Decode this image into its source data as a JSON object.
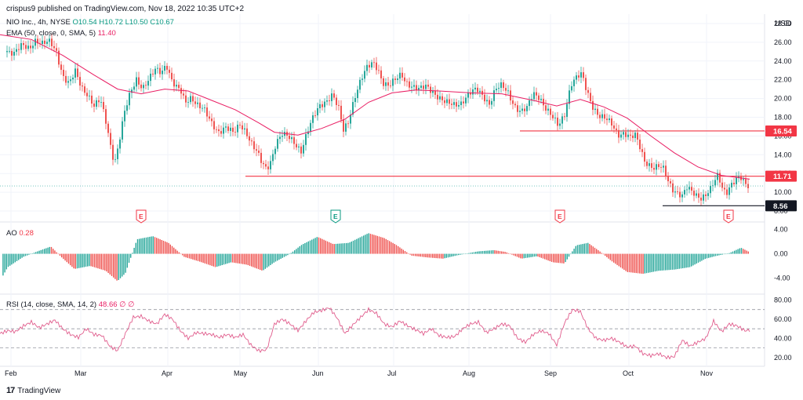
{
  "header": {
    "published_note": "crispus9 published on TradingView.com, Nov 18, 2022 10:35 UTC+2",
    "symbol_line": "NIO Inc., 4h, NYSE",
    "ohlc": {
      "O": "O10.54",
      "H": "H10.72",
      "L": "L10.50",
      "C": "C10.67"
    },
    "ema_label": "EMA (50, close, 0, SMA, 5)",
    "ema_value": "11.40",
    "ao_label": "AO",
    "ao_value": "0.28",
    "rsi_label": "RSI (14, close, SMA, 14, 2)",
    "rsi_values": "48.66 ∅ ∅",
    "currency": "USD"
  },
  "brand": {
    "logo": "17",
    "name": "TradingView"
  },
  "colors": {
    "up": "#26a69a",
    "down": "#ef5350",
    "ema": "#e91e63",
    "rsi": "#e05c8c",
    "level_red": "#f23645",
    "level_black": "#131722",
    "grid": "#f0f3fa"
  },
  "chart_data": [
    {
      "type": "candlestick",
      "name": "NIO Inc., 4h, NYSE",
      "x_ticks": [
        "Feb",
        "Mar",
        "Apr",
        "May",
        "Jun",
        "Jul",
        "Aug",
        "Sep",
        "Oct",
        "Nov"
      ],
      "y_ticks": [
        "28.00",
        "26.00",
        "24.00",
        "22.00",
        "20.00",
        "18.00",
        "16.00",
        "14.00",
        "12.00",
        "10.00",
        "8.00"
      ],
      "ylim": [
        7.5,
        29
      ],
      "price_path": [
        [
          0,
          24.2
        ],
        [
          8,
          25.2
        ],
        [
          18,
          24.8
        ],
        [
          28,
          25.6
        ],
        [
          38,
          25.4
        ],
        [
          44,
          26.3
        ],
        [
          54,
          25.8
        ],
        [
          64,
          26.0
        ],
        [
          72,
          25.0
        ],
        [
          80,
          22.5
        ],
        [
          88,
          21.5
        ],
        [
          96,
          22.8
        ],
        [
          104,
          21.2
        ],
        [
          112,
          20.5
        ],
        [
          120,
          19.2
        ],
        [
          128,
          19.8
        ],
        [
          136,
          17.2
        ],
        [
          141,
          15.0
        ],
        [
          146,
          13.2
        ],
        [
          151,
          15.0
        ],
        [
          158,
          18.2
        ],
        [
          166,
          20.5
        ],
        [
          174,
          22.1
        ],
        [
          182,
          21.2
        ],
        [
          190,
          22.0
        ],
        [
          198,
          23.0
        ],
        [
          206,
          22.8
        ],
        [
          212,
          23.8
        ],
        [
          218,
          22.2
        ],
        [
          224,
          21.2
        ],
        [
          230,
          20.8
        ],
        [
          236,
          19.5
        ],
        [
          244,
          20.2
        ],
        [
          252,
          19.4
        ],
        [
          260,
          18.8
        ],
        [
          268,
          17.5
        ],
        [
          278,
          16.5
        ],
        [
          288,
          17.0
        ],
        [
          298,
          16.2
        ],
        [
          306,
          17.2
        ],
        [
          314,
          16.5
        ],
        [
          320,
          15.4
        ],
        [
          328,
          14.2
        ],
        [
          334,
          13.0
        ],
        [
          340,
          12.4
        ],
        [
          346,
          13.5
        ],
        [
          352,
          15.4
        ],
        [
          360,
          16.2
        ],
        [
          368,
          15.8
        ],
        [
          376,
          15.2
        ],
        [
          384,
          14.5
        ],
        [
          392,
          16.5
        ],
        [
          400,
          18.0
        ],
        [
          408,
          19.2
        ],
        [
          416,
          19.8
        ],
        [
          424,
          20.5
        ],
        [
          432,
          18.8
        ],
        [
          438,
          16.5
        ],
        [
          444,
          17.5
        ],
        [
          452,
          20.2
        ],
        [
          460,
          22.0
        ],
        [
          468,
          23.2
        ],
        [
          476,
          23.8
        ],
        [
          482,
          23.2
        ],
        [
          488,
          21.8
        ],
        [
          496,
          21.3
        ],
        [
          504,
          21.9
        ],
        [
          512,
          22.6
        ],
        [
          518,
          21.8
        ],
        [
          526,
          21.3
        ],
        [
          534,
          20.9
        ],
        [
          544,
          21.3
        ],
        [
          552,
          20.8
        ],
        [
          560,
          20.1
        ],
        [
          568,
          19.5
        ],
        [
          578,
          19.3
        ],
        [
          588,
          19.6
        ],
        [
          598,
          20.5
        ],
        [
          608,
          20.9
        ],
        [
          616,
          20.3
        ],
        [
          624,
          19.5
        ],
        [
          632,
          21.0
        ],
        [
          640,
          21.3
        ],
        [
          648,
          20.6
        ],
        [
          656,
          19.3
        ],
        [
          664,
          18.6
        ],
        [
          672,
          18.9
        ],
        [
          680,
          20.5
        ],
        [
          688,
          20.2
        ],
        [
          696,
          19.0
        ],
        [
          704,
          18.0
        ],
        [
          712,
          17.0
        ],
        [
          720,
          18.4
        ],
        [
          728,
          21.6
        ],
        [
          736,
          22.3
        ],
        [
          742,
          22.5
        ],
        [
          748,
          20.8
        ],
        [
          756,
          19.2
        ],
        [
          764,
          18.2
        ],
        [
          772,
          17.8
        ],
        [
          780,
          17.2
        ],
        [
          788,
          16.2
        ],
        [
          796,
          16.4
        ],
        [
          804,
          15.8
        ],
        [
          810,
          16.0
        ],
        [
          816,
          14.8
        ],
        [
          822,
          13.4
        ],
        [
          828,
          13.0
        ],
        [
          834,
          12.6
        ],
        [
          840,
          12.7
        ],
        [
          846,
          12.4
        ],
        [
          852,
          11.2
        ],
        [
          858,
          10.4
        ],
        [
          864,
          10.0
        ],
        [
          870,
          9.6
        ],
        [
          876,
          10.4
        ],
        [
          882,
          10.0
        ],
        [
          888,
          9.7
        ],
        [
          894,
          9.5
        ],
        [
          900,
          9.8
        ],
        [
          906,
          10.3
        ],
        [
          912,
          11.2
        ],
        [
          916,
          11.8
        ],
        [
          920,
          10.6
        ],
        [
          926,
          10.0
        ],
        [
          932,
          10.9
        ],
        [
          938,
          11.3
        ],
        [
          944,
          11.5
        ],
        [
          950,
          10.8
        ],
        [
          956,
          10.6
        ]
      ],
      "ema_path": [
        [
          0,
          26.8
        ],
        [
          40,
          26.3
        ],
        [
          80,
          24.6
        ],
        [
          120,
          22.5
        ],
        [
          150,
          21.0
        ],
        [
          180,
          20.5
        ],
        [
          210,
          21.0
        ],
        [
          240,
          20.8
        ],
        [
          270,
          19.8
        ],
        [
          300,
          18.8
        ],
        [
          330,
          17.4
        ],
        [
          350,
          16.4
        ],
        [
          380,
          16.1
        ],
        [
          410,
          16.8
        ],
        [
          440,
          17.8
        ],
        [
          470,
          19.6
        ],
        [
          500,
          20.6
        ],
        [
          530,
          20.9
        ],
        [
          560,
          20.8
        ],
        [
          600,
          20.6
        ],
        [
          640,
          20.5
        ],
        [
          680,
          19.8
        ],
        [
          710,
          19.2
        ],
        [
          740,
          19.9
        ],
        [
          770,
          19.1
        ],
        [
          800,
          17.9
        ],
        [
          830,
          16.0
        ],
        [
          860,
          14.2
        ],
        [
          890,
          12.7
        ],
        [
          920,
          11.8
        ],
        [
          956,
          11.4
        ]
      ],
      "levels": [
        {
          "value": 16.54,
          "label": "16.54",
          "color": "red",
          "x_start": 663
        },
        {
          "value": 11.71,
          "label": "11.71",
          "color": "red",
          "x_start": 313
        },
        {
          "value": 8.56,
          "label": "8.56",
          "color": "black",
          "x_start": 845
        }
      ],
      "current_price": 10.67,
      "earnings_markers": [
        {
          "label": "E",
          "x": 180,
          "style": "red"
        },
        {
          "label": "E",
          "x": 428,
          "style": "green"
        },
        {
          "label": "E",
          "x": 714,
          "style": "red"
        },
        {
          "label": "E",
          "x": 929,
          "style": "red"
        }
      ]
    },
    {
      "type": "histogram",
      "name": "AO",
      "y_ticks": [
        "4.00",
        "0.00",
        "-4.00"
      ],
      "ylim": [
        -6,
        4.6
      ],
      "wave": [
        [
          0,
          -4.5
        ],
        [
          10,
          -2.2
        ],
        [
          30,
          -0.5
        ],
        [
          50,
          0.5
        ],
        [
          65,
          1.2
        ],
        [
          78,
          -0.5
        ],
        [
          95,
          -2.5
        ],
        [
          115,
          -2.0
        ],
        [
          135,
          -2.8
        ],
        [
          150,
          -4.5
        ],
        [
          160,
          -3.2
        ],
        [
          175,
          2.4
        ],
        [
          195,
          2.9
        ],
        [
          215,
          1.8
        ],
        [
          235,
          -0.5
        ],
        [
          255,
          -1.3
        ],
        [
          275,
          -2.2
        ],
        [
          295,
          -1.4
        ],
        [
          315,
          -1.8
        ],
        [
          335,
          -2.8
        ],
        [
          350,
          -1.4
        ],
        [
          370,
          0.0
        ],
        [
          385,
          1.5
        ],
        [
          405,
          2.8
        ],
        [
          425,
          1.6
        ],
        [
          445,
          1.8
        ],
        [
          470,
          3.4
        ],
        [
          490,
          2.6
        ],
        [
          505,
          1.5
        ],
        [
          525,
          -0.3
        ],
        [
          545,
          -0.6
        ],
        [
          565,
          -0.8
        ],
        [
          585,
          -0.2
        ],
        [
          610,
          0.4
        ],
        [
          630,
          0.6
        ],
        [
          645,
          0.3
        ],
        [
          665,
          -0.8
        ],
        [
          685,
          -0.4
        ],
        [
          705,
          -1.4
        ],
        [
          720,
          -1.6
        ],
        [
          735,
          1.4
        ],
        [
          750,
          1.8
        ],
        [
          765,
          0.4
        ],
        [
          780,
          -1.2
        ],
        [
          800,
          -3.0
        ],
        [
          820,
          -3.3
        ],
        [
          840,
          -2.8
        ],
        [
          860,
          -2.6
        ],
        [
          880,
          -2.2
        ],
        [
          900,
          -0.8
        ],
        [
          915,
          -0.3
        ],
        [
          930,
          0.1
        ],
        [
          945,
          1.0
        ],
        [
          956,
          0.28
        ]
      ]
    },
    {
      "type": "line",
      "name": "RSI",
      "y_ticks": [
        "80.00",
        "60.00",
        "40.00",
        "20.00"
      ],
      "ylim": [
        15,
        82
      ],
      "bands": [
        70,
        50,
        30
      ],
      "path": [
        [
          0,
          45
        ],
        [
          10,
          48
        ],
        [
          20,
          47
        ],
        [
          30,
          53
        ],
        [
          40,
          57
        ],
        [
          50,
          51
        ],
        [
          60,
          55
        ],
        [
          70,
          59
        ],
        [
          80,
          50
        ],
        [
          90,
          44
        ],
        [
          100,
          41
        ],
        [
          110,
          50
        ],
        [
          120,
          44
        ],
        [
          130,
          43
        ],
        [
          140,
          32
        ],
        [
          150,
          27
        ],
        [
          160,
          45
        ],
        [
          170,
          62
        ],
        [
          180,
          63
        ],
        [
          190,
          58
        ],
        [
          200,
          55
        ],
        [
          210,
          65
        ],
        [
          220,
          60
        ],
        [
          230,
          48
        ],
        [
          240,
          40
        ],
        [
          250,
          46
        ],
        [
          260,
          45
        ],
        [
          270,
          44
        ],
        [
          280,
          41
        ],
        [
          290,
          44
        ],
        [
          300,
          41
        ],
        [
          310,
          44
        ],
        [
          320,
          33
        ],
        [
          330,
          27
        ],
        [
          340,
          28
        ],
        [
          350,
          55
        ],
        [
          360,
          60
        ],
        [
          370,
          55
        ],
        [
          380,
          48
        ],
        [
          390,
          58
        ],
        [
          400,
          67
        ],
        [
          410,
          69
        ],
        [
          420,
          72
        ],
        [
          430,
          61
        ],
        [
          440,
          45
        ],
        [
          450,
          54
        ],
        [
          460,
          62
        ],
        [
          470,
          70
        ],
        [
          480,
          66
        ],
        [
          490,
          55
        ],
        [
          500,
          52
        ],
        [
          510,
          58
        ],
        [
          520,
          53
        ],
        [
          530,
          49
        ],
        [
          540,
          45
        ],
        [
          550,
          50
        ],
        [
          560,
          43
        ],
        [
          570,
          41
        ],
        [
          580,
          42
        ],
        [
          590,
          50
        ],
        [
          600,
          55
        ],
        [
          610,
          57
        ],
        [
          620,
          46
        ],
        [
          630,
          50
        ],
        [
          640,
          55
        ],
        [
          650,
          53
        ],
        [
          660,
          40
        ],
        [
          670,
          36
        ],
        [
          680,
          44
        ],
        [
          690,
          48
        ],
        [
          700,
          45
        ],
        [
          710,
          33
        ],
        [
          720,
          56
        ],
        [
          730,
          70
        ],
        [
          740,
          68
        ],
        [
          750,
          50
        ],
        [
          760,
          40
        ],
        [
          770,
          38
        ],
        [
          780,
          40
        ],
        [
          790,
          36
        ],
        [
          800,
          31
        ],
        [
          810,
          32
        ],
        [
          820,
          24
        ],
        [
          830,
          22
        ],
        [
          840,
          24
        ],
        [
          850,
          20
        ],
        [
          860,
          21
        ],
        [
          870,
          38
        ],
        [
          880,
          32
        ],
        [
          890,
          36
        ],
        [
          900,
          40
        ],
        [
          910,
          58
        ],
        [
          920,
          47
        ],
        [
          930,
          55
        ],
        [
          940,
          53
        ],
        [
          950,
          48
        ],
        [
          956,
          48.66
        ]
      ]
    }
  ]
}
